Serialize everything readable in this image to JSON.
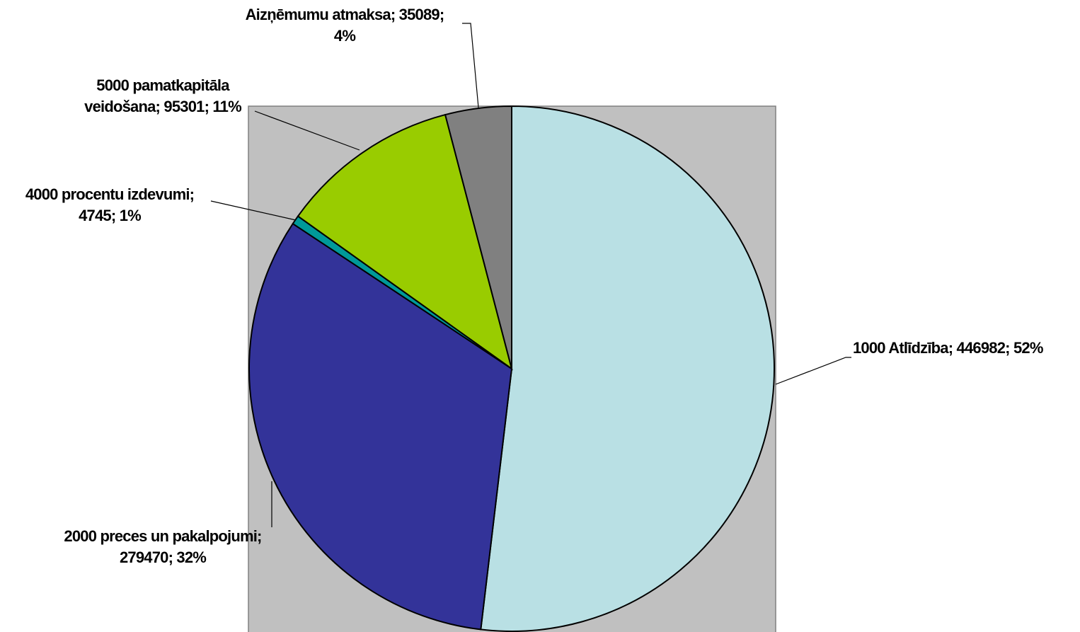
{
  "chart_data": {
    "type": "pie",
    "categories": [
      "1000 Atlīdzība",
      "2000 preces un pakalpojumi",
      "4000 procentu izdevumi",
      "5000 pamatkapitāla veidošana",
      "Aizņēmumu atmaksa"
    ],
    "values": [
      446982,
      279470,
      4745,
      95301,
      35089
    ],
    "value_labels": [
      [
        "1000 Atlīdzība; 446982; 52%"
      ],
      [
        "2000 preces un pakalpojumi;",
        "279470; 32%"
      ],
      [
        "4000 procentu izdevumi;",
        "4745; 1%"
      ],
      [
        "5000 pamatkapitāla",
        "veidošana; 95301; 11%"
      ],
      [
        "Aizņēmumu atmaksa; 35089;",
        "4%"
      ]
    ],
    "colors": [
      "#B9E0E4",
      "#333399",
      "#009999",
      "#99CC00",
      "#808080"
    ],
    "plot_background": "#C0C0C0"
  }
}
